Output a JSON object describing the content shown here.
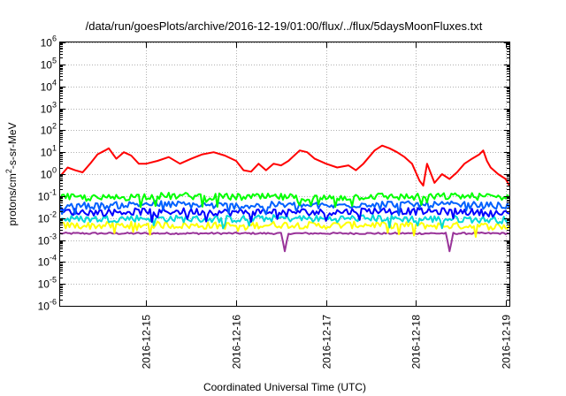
{
  "chart_data": {
    "type": "line",
    "title": "/data/run/goesPlots/archive/2016-12-19/01:00/flux/../flux/5daysMoonFluxes.txt",
    "xlabel": "Coordinated Universal Time (UTC)",
    "ylabel": "protons/cm2-s-sr-MeV",
    "ylabel_parts": {
      "pre": "protons/cm",
      "sup": "2",
      "post": "-s-sr-MeV"
    },
    "yscale": "log",
    "ylim": [
      1e-06,
      1000000.0
    ],
    "y_ticks": [
      {
        "value": 1e-06,
        "base": "10",
        "exp": "-6"
      },
      {
        "value": 1e-05,
        "base": "10",
        "exp": "-5"
      },
      {
        "value": 0.0001,
        "base": "10",
        "exp": "-4"
      },
      {
        "value": 0.001,
        "base": "10",
        "exp": "-3"
      },
      {
        "value": 0.01,
        "base": "10",
        "exp": "-2"
      },
      {
        "value": 0.1,
        "base": "10",
        "exp": "-1"
      },
      {
        "value": 1,
        "base": "10",
        "exp": "0"
      },
      {
        "value": 10,
        "base": "10",
        "exp": "1"
      },
      {
        "value": 100,
        "base": "10",
        "exp": "2"
      },
      {
        "value": 1000,
        "base": "10",
        "exp": "3"
      },
      {
        "value": 10000,
        "base": "10",
        "exp": "4"
      },
      {
        "value": 100000,
        "base": "10",
        "exp": "5"
      },
      {
        "value": 1000000,
        "base": "10",
        "exp": "6"
      }
    ],
    "xlim": [
      "2016-12-14T01:00",
      "2016-12-19T01:00"
    ],
    "x_ticks": [
      {
        "value": "2016-12-15T00:00",
        "label": "2016-12-15"
      },
      {
        "value": "2016-12-16T00:00",
        "label": "2016-12-16"
      },
      {
        "value": "2016-12-17T00:00",
        "label": "2016-12-17"
      },
      {
        "value": "2016-12-18T00:00",
        "label": "2016-12-18"
      },
      {
        "value": "2016-12-19T00:00",
        "label": "2016-12-19"
      }
    ],
    "grid": true,
    "legend": "none",
    "series": [
      {
        "color": "#ff0000",
        "style": "smooth",
        "points": [
          [
            "2016-12-14T01:00",
            0.8
          ],
          [
            "2016-12-14T03:00",
            2
          ],
          [
            "2016-12-14T05:00",
            1.5
          ],
          [
            "2016-12-14T07:00",
            1.2
          ],
          [
            "2016-12-14T09:00",
            3
          ],
          [
            "2016-12-14T11:00",
            8
          ],
          [
            "2016-12-14T13:00",
            12
          ],
          [
            "2016-12-14T14:00",
            15
          ],
          [
            "2016-12-14T16:00",
            5
          ],
          [
            "2016-12-14T18:00",
            10
          ],
          [
            "2016-12-14T20:00",
            7
          ],
          [
            "2016-12-14T22:00",
            3
          ],
          [
            "2016-12-15T00:00",
            3
          ],
          [
            "2016-12-15T03:00",
            4
          ],
          [
            "2016-12-15T06:00",
            6
          ],
          [
            "2016-12-15T09:00",
            3
          ],
          [
            "2016-12-15T12:00",
            5
          ],
          [
            "2016-12-15T15:00",
            8
          ],
          [
            "2016-12-15T18:00",
            10
          ],
          [
            "2016-12-15T21:00",
            7
          ],
          [
            "2016-12-16T00:00",
            4
          ],
          [
            "2016-12-16T02:00",
            1.5
          ],
          [
            "2016-12-16T04:00",
            1.3
          ],
          [
            "2016-12-16T06:00",
            3
          ],
          [
            "2016-12-16T08:00",
            1.5
          ],
          [
            "2016-12-16T10:00",
            3
          ],
          [
            "2016-12-16T12:00",
            2.5
          ],
          [
            "2016-12-16T14:00",
            4
          ],
          [
            "2016-12-16T17:00",
            12
          ],
          [
            "2016-12-16T19:00",
            10
          ],
          [
            "2016-12-16T21:00",
            5
          ],
          [
            "2016-12-17T00:00",
            3
          ],
          [
            "2016-12-17T03:00",
            2
          ],
          [
            "2016-12-17T06:00",
            2.5
          ],
          [
            "2016-12-17T08:00",
            1.5
          ],
          [
            "2016-12-17T10:00",
            3
          ],
          [
            "2016-12-17T13:00",
            12
          ],
          [
            "2016-12-17T15:00",
            20
          ],
          [
            "2016-12-17T17:00",
            15
          ],
          [
            "2016-12-17T19:00",
            10
          ],
          [
            "2016-12-17T21:00",
            6
          ],
          [
            "2016-12-17T23:00",
            3
          ],
          [
            "2016-12-18T01:00",
            0.5
          ],
          [
            "2016-12-18T02:00",
            0.3
          ],
          [
            "2016-12-18T03:00",
            3
          ],
          [
            "2016-12-18T05:00",
            0.4
          ],
          [
            "2016-12-18T07:00",
            1
          ],
          [
            "2016-12-18T09:00",
            0.6
          ],
          [
            "2016-12-18T11:00",
            1.2
          ],
          [
            "2016-12-18T13:00",
            3
          ],
          [
            "2016-12-18T15:00",
            5
          ],
          [
            "2016-12-18T17:00",
            8
          ],
          [
            "2016-12-18T18:00",
            12
          ],
          [
            "2016-12-18T19:00",
            4
          ],
          [
            "2016-12-18T20:00",
            2
          ],
          [
            "2016-12-18T22:00",
            1
          ],
          [
            "2016-12-19T00:00",
            0.6
          ],
          [
            "2016-12-19T01:00",
            0.3
          ]
        ]
      },
      {
        "color": "#00ff00",
        "style": "noisy",
        "points": [
          [
            "2016-12-14T01:00",
            0.09
          ],
          [
            "2016-12-14T12:00",
            0.08
          ],
          [
            "2016-12-15T00:00",
            0.1
          ],
          [
            "2016-12-15T12:00",
            0.1
          ],
          [
            "2016-12-16T00:00",
            0.09
          ],
          [
            "2016-12-16T12:00",
            0.09
          ],
          [
            "2016-12-17T00:00",
            0.08
          ],
          [
            "2016-12-17T12:00",
            0.1
          ],
          [
            "2016-12-18T00:00",
            0.09
          ],
          [
            "2016-12-18T12:00",
            0.1
          ],
          [
            "2016-12-19T01:00",
            0.09
          ]
        ]
      },
      {
        "color": "#0060ff",
        "style": "noisy",
        "points": [
          [
            "2016-12-14T01:00",
            0.04
          ],
          [
            "2016-12-14T12:00",
            0.035
          ],
          [
            "2016-12-15T00:00",
            0.045
          ],
          [
            "2016-12-15T12:00",
            0.04
          ],
          [
            "2016-12-16T00:00",
            0.035
          ],
          [
            "2016-12-16T12:00",
            0.04
          ],
          [
            "2016-12-17T00:00",
            0.035
          ],
          [
            "2016-12-17T12:00",
            0.045
          ],
          [
            "2016-12-18T00:00",
            0.04
          ],
          [
            "2016-12-18T12:00",
            0.04
          ],
          [
            "2016-12-19T01:00",
            0.035
          ]
        ]
      },
      {
        "color": "#0000ff",
        "style": "noisy",
        "points": [
          [
            "2016-12-14T01:00",
            0.02
          ],
          [
            "2016-12-14T12:00",
            0.018
          ],
          [
            "2016-12-15T00:00",
            0.02
          ],
          [
            "2016-12-15T12:00",
            0.02
          ],
          [
            "2016-12-16T00:00",
            0.018
          ],
          [
            "2016-12-16T12:00",
            0.02
          ],
          [
            "2016-12-17T00:00",
            0.018
          ],
          [
            "2016-12-17T12:00",
            0.022
          ],
          [
            "2016-12-18T00:00",
            0.02
          ],
          [
            "2016-12-18T12:00",
            0.02
          ],
          [
            "2016-12-19T01:00",
            0.015
          ]
        ]
      },
      {
        "color": "#00d8d8",
        "style": "noisy",
        "points": [
          [
            "2016-12-14T01:00",
            0.009
          ],
          [
            "2016-12-14T12:00",
            0.009
          ],
          [
            "2016-12-15T00:00",
            0.01
          ],
          [
            "2016-12-15T12:00",
            0.009
          ],
          [
            "2016-12-16T00:00",
            0.009
          ],
          [
            "2016-12-16T12:00",
            0.01
          ],
          [
            "2016-12-17T00:00",
            0.009
          ],
          [
            "2016-12-17T12:00",
            0.01
          ],
          [
            "2016-12-18T00:00",
            0.009
          ],
          [
            "2016-12-18T12:00",
            0.009
          ],
          [
            "2016-12-19T01:00",
            0.008
          ]
        ]
      },
      {
        "color": "#ffff00",
        "style": "noisy",
        "points": [
          [
            "2016-12-14T01:00",
            0.0045
          ],
          [
            "2016-12-14T12:00",
            0.0045
          ],
          [
            "2016-12-15T00:00",
            0.005
          ],
          [
            "2016-12-15T12:00",
            0.0045
          ],
          [
            "2016-12-16T00:00",
            0.0045
          ],
          [
            "2016-12-16T12:00",
            0.005
          ],
          [
            "2016-12-17T00:00",
            0.0045
          ],
          [
            "2016-12-17T12:00",
            0.005
          ],
          [
            "2016-12-18T00:00",
            0.0045
          ],
          [
            "2016-12-18T12:00",
            0.0045
          ],
          [
            "2016-12-19T01:00",
            0.004
          ]
        ]
      },
      {
        "color": "#993399",
        "style": "noisy-low",
        "points": [
          [
            "2016-12-14T01:00",
            0.002
          ],
          [
            "2016-12-14T12:00",
            0.002
          ],
          [
            "2016-12-15T00:00",
            0.002
          ],
          [
            "2016-12-15T12:00",
            0.002
          ],
          [
            "2016-12-16T00:00",
            0.002
          ],
          [
            "2016-12-16T12:00",
            0.002
          ],
          [
            "2016-12-16T13:00",
            0.0003
          ],
          [
            "2016-12-16T14:00",
            0.002
          ],
          [
            "2016-12-17T00:00",
            0.002
          ],
          [
            "2016-12-17T12:00",
            0.002
          ],
          [
            "2016-12-18T00:00",
            0.002
          ],
          [
            "2016-12-18T08:00",
            0.002
          ],
          [
            "2016-12-18T09:00",
            0.0003
          ],
          [
            "2016-12-18T10:00",
            0.002
          ],
          [
            "2016-12-19T01:00",
            0.002
          ]
        ]
      }
    ]
  }
}
